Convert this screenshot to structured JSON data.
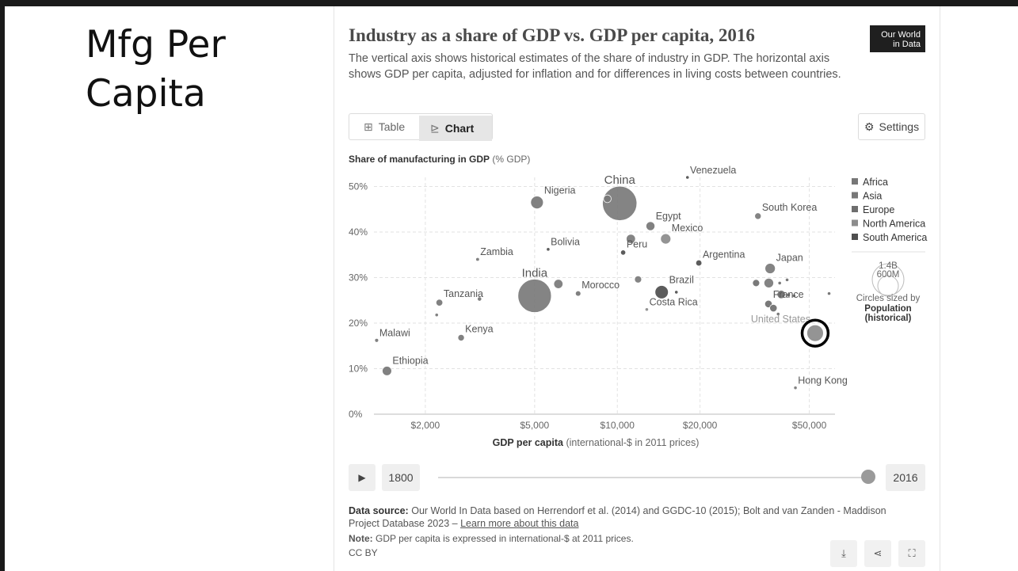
{
  "slide": {
    "title": "Mfg Per Capita"
  },
  "owid": {
    "logo_line1": "Our World",
    "logo_line2": "in Data",
    "title": "Industry as a share of GDP vs. GDP per capita, 2016",
    "subtitle": "The vertical axis shows historical estimates of the share of industry in GDP. The horizontal axis shows GDP per capita, adjusted for inflation and for differences in living costs between countries.",
    "tabs": [
      {
        "label": "Table",
        "icon": "table-icon"
      },
      {
        "label": "Chart",
        "icon": "chart-icon"
      }
    ],
    "settings_label": "Settings",
    "settings_icon": "gear-icon",
    "timeline": {
      "start_label": "1800",
      "end_label": "2016",
      "play_icon": "play-icon",
      "position": 1.0
    },
    "source_bold": "Data source:",
    "source_text": "Our World In Data based on Herrendorf et al. (2014) and GGDC-10 (2015); Bolt and van Zanden - Maddison Project Database 2023 –",
    "source_link": "Learn more about this data",
    "note_bold": "Note:",
    "note_text_before": "GDP per capita is expressed in",
    "note_link": "international-$",
    "note_text_after": "at 2011 prices.",
    "license": "CC BY",
    "actions": [
      "download-icon",
      "share-icon",
      "fullscreen-icon"
    ]
  },
  "chart_data": {
    "type": "scatter",
    "ylabel_bold": "Share of manufacturing in GDP",
    "ylabel_unit": "(% GDP)",
    "xlabel_bold": "GDP per capita",
    "xlabel_unit": "(international-$ in 2011 prices)",
    "x_scale": "log",
    "xlim": [
      1300,
      62000
    ],
    "ylim": [
      0,
      52
    ],
    "x_ticks": [
      {
        "value": 2000,
        "label": "$2,000"
      },
      {
        "value": 5000,
        "label": "$5,000"
      },
      {
        "value": 10000,
        "label": "$10,000"
      },
      {
        "value": 20000,
        "label": "$20,000"
      },
      {
        "value": 50000,
        "label": "$50,000"
      }
    ],
    "y_ticks": [
      {
        "value": 0,
        "label": "0%"
      },
      {
        "value": 10,
        "label": "10%"
      },
      {
        "value": 20,
        "label": "20%"
      },
      {
        "value": 30,
        "label": "30%"
      },
      {
        "value": 40,
        "label": "40%"
      },
      {
        "value": 50,
        "label": "50%"
      }
    ],
    "grid": true,
    "legend": {
      "position": "right",
      "entries": [
        {
          "name": "Africa",
          "color": "#777777"
        },
        {
          "name": "Asia",
          "color": "#777777"
        },
        {
          "name": "Europe",
          "color": "#6e6e6e"
        },
        {
          "name": "North America",
          "color": "#8c8c8c"
        },
        {
          "name": "South America",
          "color": "#4f4f4f"
        }
      ]
    },
    "size_legend": {
      "large_label": "1.4B",
      "small_label": "600M",
      "caption": "Circles sized by",
      "caption_bold": "Population (historical)"
    },
    "highlight_circle": "United States",
    "points": [
      {
        "label": "China",
        "x": 10200,
        "y": 46.3,
        "pop": 1400,
        "color": "#7a7a7a"
      },
      {
        "label": "",
        "x": 9200,
        "y": 47.3,
        "pop": 70,
        "color": "#7a7a7a"
      },
      {
        "label": "Venezuela",
        "x": 18000,
        "y": 52,
        "pop": 4,
        "color": "#4f4f4f"
      },
      {
        "label": "Nigeria",
        "x": 5100,
        "y": 46.5,
        "pop": 190,
        "color": "#777777"
      },
      {
        "label": "South Korea",
        "x": 32500,
        "y": 43.5,
        "pop": 50,
        "color": "#7a7a7a"
      },
      {
        "label": "Egypt",
        "x": 13200,
        "y": 41.3,
        "pop": 95,
        "color": "#777777"
      },
      {
        "label": "Mexico",
        "x": 15000,
        "y": 38.5,
        "pop": 125,
        "color": "#8c8c8c"
      },
      {
        "label": "",
        "x": 11200,
        "y": 38.5,
        "pop": 100,
        "color": "#7a7a7a"
      },
      {
        "label": "Bolivia",
        "x": 5600,
        "y": 36.2,
        "pop": 11,
        "color": "#4f4f4f"
      },
      {
        "label": "Peru",
        "x": 10500,
        "y": 35.5,
        "pop": 31,
        "color": "#4f4f4f"
      },
      {
        "label": "Argentina",
        "x": 19800,
        "y": 33.2,
        "pop": 44,
        "color": "#4f4f4f"
      },
      {
        "label": "Zambia",
        "x": 3100,
        "y": 34,
        "pop": 16,
        "color": "#777777"
      },
      {
        "label": "India",
        "x": 5000,
        "y": 26,
        "pop": 1320,
        "color": "#7a7a7a"
      },
      {
        "label": "",
        "x": 6100,
        "y": 28.6,
        "pop": 100,
        "color": "#7a7a7a"
      },
      {
        "label": "Morocco",
        "x": 7200,
        "y": 26.5,
        "pop": 35,
        "color": "#777777"
      },
      {
        "label": "",
        "x": 11900,
        "y": 29.6,
        "pop": 60,
        "color": "#7a7a7a"
      },
      {
        "label": "Brazil",
        "x": 14500,
        "y": 26.8,
        "pop": 210,
        "color": "#4f4f4f"
      },
      {
        "label": "",
        "x": 16400,
        "y": 26.8,
        "pop": 3,
        "color": "#4f4f4f"
      },
      {
        "label": "Costa Rica",
        "x": 12800,
        "y": 23,
        "pop": 5,
        "color": "#8c8c8c"
      },
      {
        "label": "Japan",
        "x": 36000,
        "y": 32,
        "pop": 127,
        "color": "#7a7a7a"
      },
      {
        "label": "",
        "x": 32000,
        "y": 28.8,
        "pop": 60,
        "color": "#6e6e6e"
      },
      {
        "label": "",
        "x": 35600,
        "y": 28.8,
        "pop": 110,
        "color": "#7a7a7a"
      },
      {
        "label": "",
        "x": 39000,
        "y": 28.8,
        "pop": 10,
        "color": "#6e6e6e"
      },
      {
        "label": "",
        "x": 41500,
        "y": 29.5,
        "pop": 8,
        "color": "#6e6e6e"
      },
      {
        "label": "",
        "x": 39500,
        "y": 26.3,
        "pop": 82,
        "color": "#6e6e6e"
      },
      {
        "label": "",
        "x": 42000,
        "y": 26.2,
        "pop": 17,
        "color": "#6e6e6e"
      },
      {
        "label": "",
        "x": 44000,
        "y": 26,
        "pop": 10,
        "color": "#6e6e6e"
      },
      {
        "label": "",
        "x": 59000,
        "y": 26.5,
        "pop": 5,
        "color": "#6e6e6e"
      },
      {
        "label": "France",
        "x": 35500,
        "y": 24.2,
        "pop": 66,
        "color": "#6e6e6e"
      },
      {
        "label": "",
        "x": 37000,
        "y": 23.3,
        "pop": 66,
        "color": "#6e6e6e"
      },
      {
        "label": "",
        "x": 38500,
        "y": 22,
        "pop": 10,
        "color": "#6e6e6e"
      },
      {
        "label": "United States",
        "x": 52500,
        "y": 17.8,
        "pop": 325,
        "color": "#8c8c8c"
      },
      {
        "label": "Hong Kong",
        "x": 44500,
        "y": 5.8,
        "pop": 7,
        "color": "#7a7a7a"
      },
      {
        "label": "Tanzania",
        "x": 2250,
        "y": 24.5,
        "pop": 55,
        "color": "#777777"
      },
      {
        "label": "",
        "x": 3150,
        "y": 25.3,
        "pop": 22,
        "color": "#777777"
      },
      {
        "label": "",
        "x": 2200,
        "y": 21.8,
        "pop": 10,
        "color": "#777777"
      },
      {
        "label": "Kenya",
        "x": 2700,
        "y": 16.8,
        "pop": 50,
        "color": "#777777"
      },
      {
        "label": "Malawi",
        "x": 1330,
        "y": 16.2,
        "pop": 18,
        "color": "#777777"
      },
      {
        "label": "Ethiopia",
        "x": 1450,
        "y": 9.5,
        "pop": 105,
        "color": "#777777"
      }
    ]
  }
}
